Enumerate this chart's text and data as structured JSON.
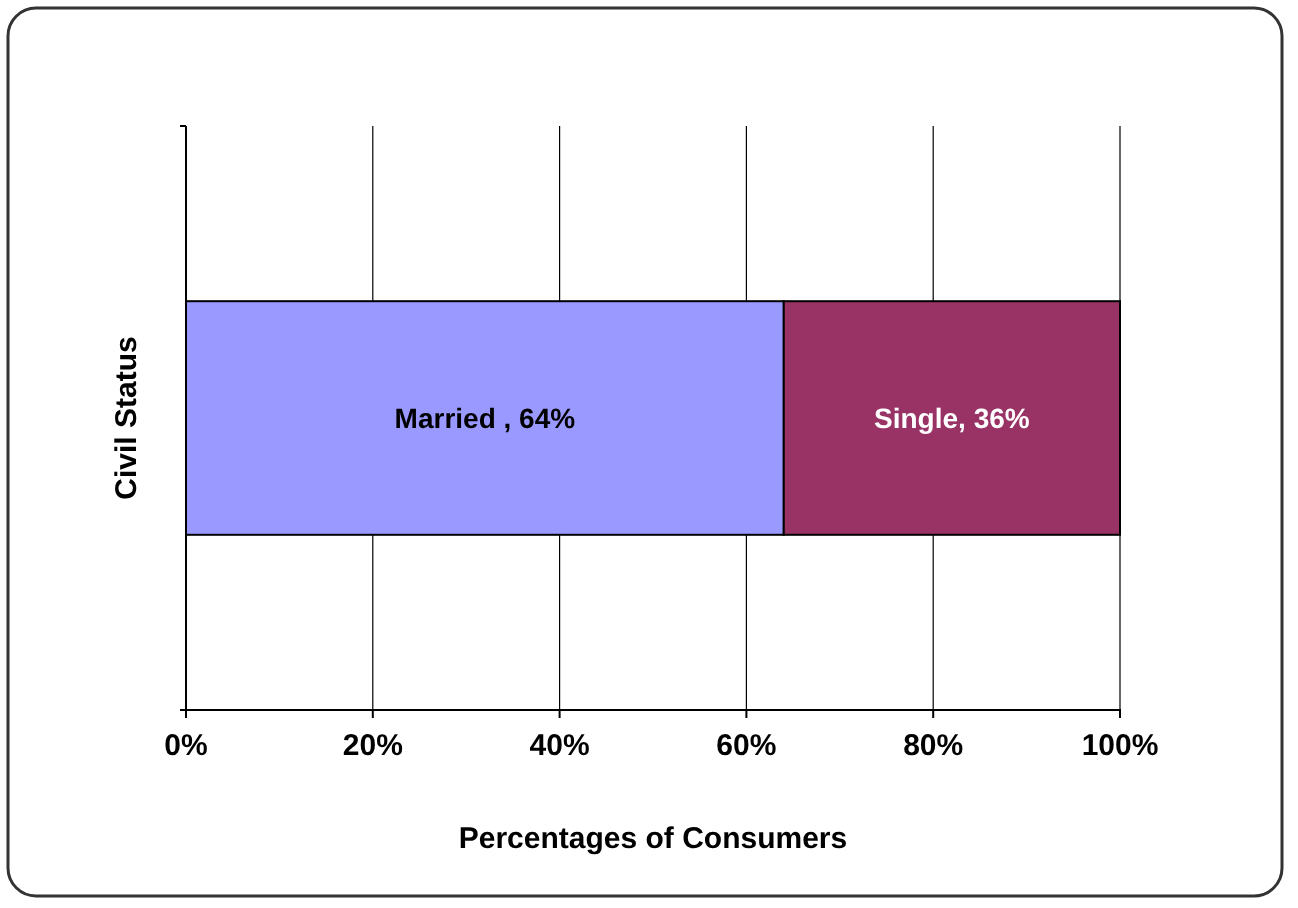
{
  "chart_data": {
    "type": "bar",
    "orientation": "horizontal",
    "stacked": true,
    "categories": [
      null
    ],
    "series": [
      {
        "color": "#9999ff",
        "values": [
          64
        ],
        "value_labels": [
          "Married , 64%"
        ]
      },
      {
        "color": "#993366",
        "values": [
          36
        ],
        "value_labels": [
          "Single, 36%"
        ]
      }
    ],
    "xlabel": "Percentages of Consumers",
    "ylabel": "Civil Status",
    "xlim": [
      0,
      100
    ],
    "xticks": [
      {
        "value": 0,
        "label": "0%"
      },
      {
        "value": 20,
        "label": "20%"
      },
      {
        "value": 40,
        "label": "40%"
      },
      {
        "value": 60,
        "label": "60%"
      },
      {
        "value": 80,
        "label": "80%"
      },
      {
        "value": 100,
        "label": "100%"
      }
    ],
    "grid": "x",
    "legend": false,
    "tick_labels": "x"
  }
}
